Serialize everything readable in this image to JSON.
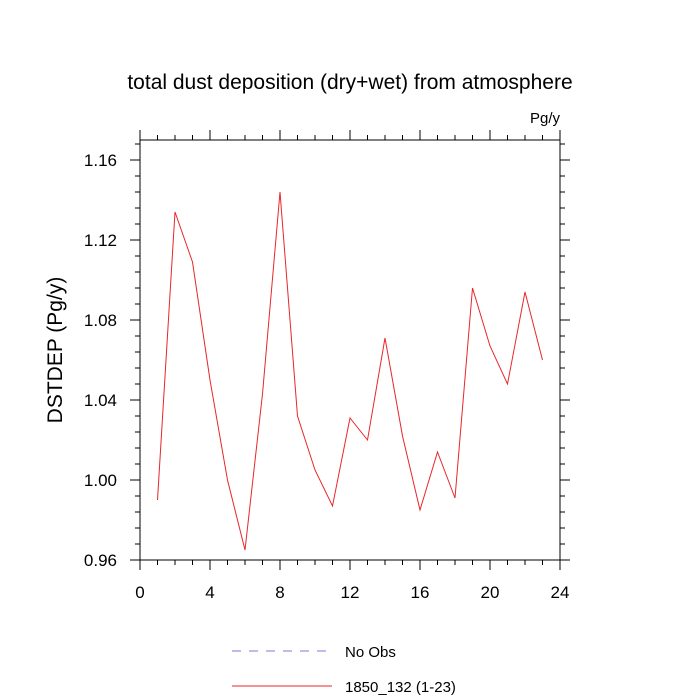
{
  "chart_data": {
    "type": "line",
    "title": "total dust deposition (dry+wet) from atmosphere",
    "units_label": "Pg/y",
    "xlabel": "",
    "ylabel": "DSTDEP  (Pg/y)",
    "xlim": [
      0,
      24
    ],
    "ylim": [
      0.96,
      1.17
    ],
    "x_ticks": [
      0,
      4,
      8,
      12,
      16,
      20,
      24
    ],
    "x_tick_labels": [
      "0",
      "4",
      "8",
      "12",
      "16",
      "20",
      "24"
    ],
    "y_ticks": [
      0.96,
      1.0,
      1.04,
      1.08,
      1.12,
      1.16
    ],
    "y_tick_labels": [
      "0.96",
      "1.00",
      "1.04",
      "1.08",
      "1.12",
      "1.16"
    ],
    "grid": false,
    "legend_position": "bottom",
    "series": [
      {
        "name": "1850_132 (1-23)",
        "color": "#e8262a",
        "style": "solid",
        "x": [
          1,
          2,
          3,
          4,
          5,
          6,
          7,
          8,
          9,
          10,
          11,
          12,
          13,
          14,
          15,
          16,
          17,
          18,
          19,
          20,
          21,
          22,
          23
        ],
        "y": [
          0.99,
          1.134,
          1.109,
          1.05,
          1.0,
          0.965,
          1.043,
          1.144,
          1.032,
          1.005,
          0.987,
          1.031,
          1.02,
          1.071,
          1.022,
          0.985,
          1.014,
          0.991,
          1.096,
          1.067,
          1.048,
          1.094,
          1.06
        ]
      }
    ],
    "legend": [
      {
        "label": "No Obs",
        "color": "#7b7bd6",
        "style": "dashed"
      },
      {
        "label": "1850_132 (1-23)",
        "color": "#e8262a",
        "style": "solid"
      }
    ]
  }
}
